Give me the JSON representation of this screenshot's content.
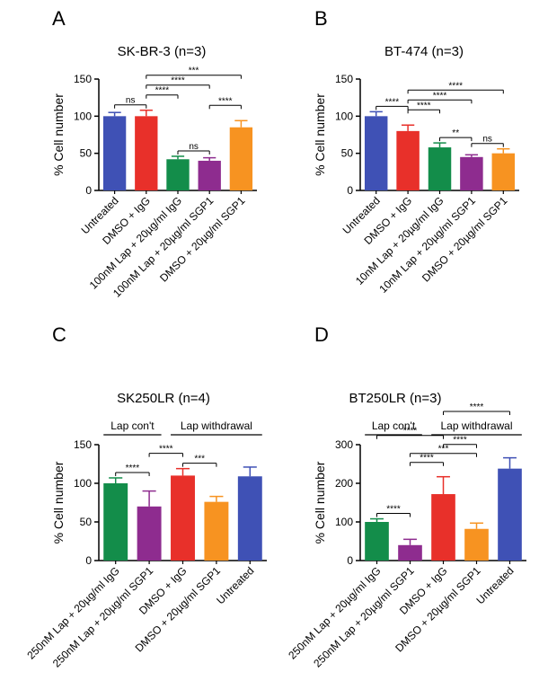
{
  "figure": {
    "chart_data": [
      {
        "type": "bar",
        "panel": "A",
        "title": "SK-BR-3 (n=3)",
        "ylabel": "% Cell number",
        "ylim": [
          0,
          150
        ],
        "yticks": [
          0,
          50,
          100,
          150
        ],
        "categories": [
          "Untreated",
          "DMSO + IgG",
          "100nM Lap + 20µg/ml IgG",
          "100nM Lap + 20µg/ml SGP1",
          "DMSO + 20µg/ml SGP1"
        ],
        "values": [
          100,
          100,
          42,
          40,
          85
        ],
        "errors": [
          5,
          8,
          4,
          4,
          9
        ],
        "colors": [
          "#3f51b5",
          "#e8302a",
          "#138d4a",
          "#8e2c8f",
          "#f79321"
        ],
        "significance": [
          {
            "from": 0,
            "to": 1,
            "label": "ns",
            "level": 1
          },
          {
            "from": 1,
            "to": 2,
            "label": "****",
            "level": 2
          },
          {
            "from": 2,
            "to": 3,
            "label": "ns",
            "level": 1
          },
          {
            "from": 3,
            "to": 4,
            "label": "****",
            "level": 2
          },
          {
            "from": 1,
            "to": 3,
            "label": "****",
            "level": 3
          },
          {
            "from": 1,
            "to": 4,
            "label": "***",
            "level": 4
          }
        ]
      },
      {
        "type": "bar",
        "panel": "B",
        "title": "BT-474 (n=3)",
        "ylabel": "% Cell number",
        "ylim": [
          0,
          150
        ],
        "yticks": [
          0,
          50,
          100,
          150
        ],
        "categories": [
          "Untreated",
          "DMSO + IgG",
          "10nM Lap + 20µg/ml IgG",
          "10nM Lap + 20µg/ml SGP1",
          "DMSO + 20µg/ml SGP1"
        ],
        "values": [
          100,
          80,
          58,
          45,
          50
        ],
        "errors": [
          6,
          8,
          6,
          3,
          6
        ],
        "colors": [
          "#3f51b5",
          "#e8302a",
          "#138d4a",
          "#8e2c8f",
          "#f79321"
        ],
        "significance": [
          {
            "from": 0,
            "to": 1,
            "label": "****",
            "level": 1
          },
          {
            "from": 1,
            "to": 2,
            "label": "****",
            "level": 2
          },
          {
            "from": 2,
            "to": 3,
            "label": "**",
            "level": 1
          },
          {
            "from": 3,
            "to": 4,
            "label": "ns",
            "level": 1
          },
          {
            "from": 1,
            "to": 3,
            "label": "****",
            "level": 3
          },
          {
            "from": 1,
            "to": 4,
            "label": "****",
            "level": 4
          }
        ]
      },
      {
        "type": "bar",
        "panel": "C",
        "title": "SK250LR (n=4)",
        "ylabel": "% Cell number",
        "ylim": [
          0,
          150
        ],
        "yticks": [
          0,
          50,
          100,
          150
        ],
        "categories": [
          "250nM Lap + 20µg/ml IgG",
          "250nM Lap + 20µg/ml SGP1",
          "DMSO + IgG",
          "DMSO + 20µg/ml SGP1",
          "Untreated"
        ],
        "values": [
          100,
          70,
          110,
          76,
          109
        ],
        "errors": [
          7,
          20,
          9,
          7,
          12
        ],
        "colors": [
          "#138d4a",
          "#8e2c8f",
          "#e8302a",
          "#f79321",
          "#3f51b5"
        ],
        "significance": [
          {
            "from": 0,
            "to": 1,
            "label": "****",
            "level": 1
          },
          {
            "from": 1,
            "to": 2,
            "label": "****",
            "level": 2
          },
          {
            "from": 2,
            "to": 3,
            "label": "***",
            "level": 1
          }
        ],
        "groups": [
          {
            "label": "Lap con't",
            "from": 0,
            "to": 1
          },
          {
            "label": "Lap withdrawal",
            "from": 2,
            "to": 4
          }
        ]
      },
      {
        "type": "bar",
        "panel": "D",
        "title": "BT250LR (n=3)",
        "ylabel": "% Cell number",
        "ylim": [
          0,
          300
        ],
        "yticks": [
          0,
          100,
          200,
          300
        ],
        "categories": [
          "250nM Lap + 20µg/ml IgG",
          "250nM Lap + 20µg/ml SGP1",
          "DMSO + IgG",
          "DMSO + 20µg/ml SGP1",
          "Untreated"
        ],
        "values": [
          100,
          40,
          172,
          82,
          238
        ],
        "errors": [
          8,
          15,
          45,
          15,
          28
        ],
        "colors": [
          "#138d4a",
          "#8e2c8f",
          "#e8302a",
          "#f79321",
          "#3f51b5"
        ],
        "significance": [
          {
            "from": 0,
            "to": 1,
            "label": "****",
            "level": 1
          },
          {
            "from": 1,
            "to": 2,
            "label": "****",
            "level": 2
          },
          {
            "from": 1,
            "to": 3,
            "label": "***",
            "level": 3
          },
          {
            "from": 2,
            "to": 3,
            "label": "****",
            "level": 4
          },
          {
            "from": 0,
            "to": 2,
            "label": "****",
            "level": 5
          },
          {
            "from": 2,
            "to": 4,
            "label": "****",
            "level": 6
          }
        ],
        "groups": [
          {
            "label": "Lap con't",
            "from": 0,
            "to": 1
          },
          {
            "label": "Lap withdrawal",
            "from": 2,
            "to": 4
          }
        ]
      }
    ]
  }
}
